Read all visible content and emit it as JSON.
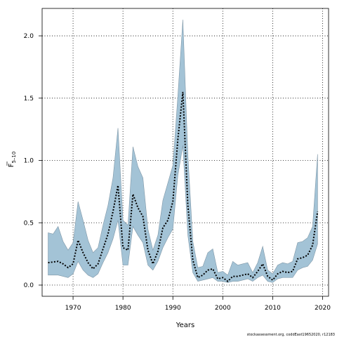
{
  "chart_data": {
    "type": "line",
    "title": "",
    "xlabel": "Years",
    "ylabel_main": "F",
    "ylabel_sub": "5–10",
    "footnote": "stockassessment.org, coddEast19652020, r12183",
    "xlim": [
      1963.8,
      2021.2
    ],
    "ylim": [
      -0.09,
      2.22
    ],
    "grid": true,
    "x_ticks": [
      {
        "value": 1970,
        "label": "1970"
      },
      {
        "value": 1980,
        "label": "1980"
      },
      {
        "value": 1990,
        "label": "1990"
      },
      {
        "value": 2000,
        "label": "2000"
      },
      {
        "value": 2010,
        "label": "2010"
      },
      {
        "value": 2020,
        "label": "2020"
      }
    ],
    "y_ticks": [
      {
        "value": 0.0,
        "label": "0.0"
      },
      {
        "value": 0.5,
        "label": "0.5"
      },
      {
        "value": 1.0,
        "label": "1.0"
      },
      {
        "value": 1.5,
        "label": "1.5"
      },
      {
        "value": 2.0,
        "label": "2.0"
      }
    ],
    "colors": {
      "band_fill": "#a3c3d6",
      "band_stroke": "#7f97a7",
      "line": "#000000"
    },
    "x": [
      1965,
      1966,
      1967,
      1968,
      1969,
      1970,
      1971,
      1972,
      1973,
      1974,
      1975,
      1976,
      1977,
      1978,
      1979,
      1980,
      1981,
      1982,
      1983,
      1984,
      1985,
      1986,
      1987,
      1988,
      1989,
      1990,
      1991,
      1992,
      1993,
      1994,
      1995,
      1996,
      1997,
      1998,
      1999,
      2000,
      2001,
      2002,
      2003,
      2004,
      2005,
      2006,
      2007,
      2008,
      2009,
      2010,
      2011,
      2012,
      2013,
      2014,
      2015,
      2016,
      2017,
      2018,
      2019
    ],
    "series": [
      {
        "values": [
          0.18,
          0.185,
          0.19,
          0.17,
          0.14,
          0.17,
          0.36,
          0.26,
          0.18,
          0.13,
          0.17,
          0.29,
          0.41,
          0.59,
          0.8,
          0.3,
          0.28,
          0.73,
          0.62,
          0.55,
          0.28,
          0.17,
          0.27,
          0.46,
          0.52,
          0.67,
          1.17,
          1.55,
          0.64,
          0.2,
          0.06,
          0.08,
          0.12,
          0.13,
          0.05,
          0.06,
          0.03,
          0.07,
          0.07,
          0.08,
          0.09,
          0.06,
          0.11,
          0.17,
          0.07,
          0.04,
          0.09,
          0.11,
          0.1,
          0.11,
          0.21,
          0.22,
          0.24,
          0.32,
          0.59
        ],
        "lower": [
          0.08,
          0.08,
          0.08,
          0.07,
          0.06,
          0.09,
          0.19,
          0.12,
          0.08,
          0.06,
          0.09,
          0.18,
          0.26,
          0.37,
          0.52,
          0.16,
          0.16,
          0.47,
          0.4,
          0.34,
          0.16,
          0.12,
          0.19,
          0.3,
          0.38,
          0.45,
          0.88,
          1.12,
          0.4,
          0.1,
          0.03,
          0.04,
          0.05,
          0.06,
          0.03,
          0.03,
          0.02,
          0.03,
          0.03,
          0.04,
          0.05,
          0.03,
          0.06,
          0.08,
          0.03,
          0.02,
          0.05,
          0.06,
          0.06,
          0.06,
          0.12,
          0.14,
          0.15,
          0.2,
          0.33
        ],
        "upper": [
          0.42,
          0.41,
          0.47,
          0.35,
          0.28,
          0.34,
          0.67,
          0.52,
          0.36,
          0.26,
          0.3,
          0.48,
          0.64,
          0.86,
          1.26,
          0.52,
          0.48,
          1.11,
          0.95,
          0.86,
          0.45,
          0.28,
          0.4,
          0.68,
          0.82,
          0.96,
          1.52,
          2.13,
          1.05,
          0.35,
          0.14,
          0.15,
          0.26,
          0.29,
          0.1,
          0.11,
          0.08,
          0.19,
          0.16,
          0.17,
          0.18,
          0.1,
          0.18,
          0.31,
          0.12,
          0.09,
          0.16,
          0.18,
          0.17,
          0.19,
          0.34,
          0.35,
          0.38,
          0.47,
          1.05
        ]
      }
    ]
  }
}
